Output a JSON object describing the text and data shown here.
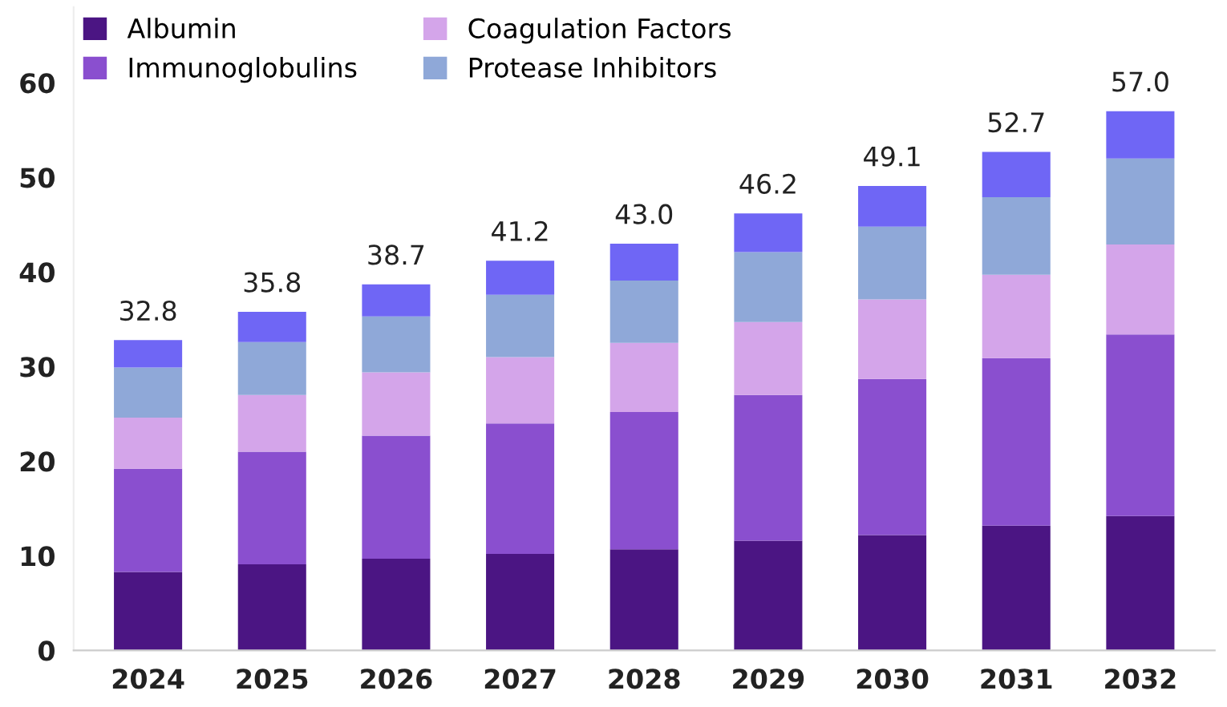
{
  "chart_data": {
    "type": "bar",
    "stacked": true,
    "categories": [
      "2024",
      "2025",
      "2026",
      "2027",
      "2028",
      "2029",
      "2030",
      "2031",
      "2032"
    ],
    "series": [
      {
        "name": "Albumin",
        "color": "#4b1583",
        "values": [
          8.3,
          9.1,
          9.7,
          10.2,
          10.7,
          11.6,
          12.2,
          13.2,
          14.2
        ]
      },
      {
        "name": "Immunoglobulins",
        "color": "#8a4fcf",
        "values": [
          10.9,
          11.9,
          13.0,
          13.8,
          14.5,
          15.4,
          16.5,
          17.7,
          19.2
        ]
      },
      {
        "name": "Coagulation Factors",
        "color": "#d4a5ea",
        "values": [
          5.4,
          6.0,
          6.7,
          7.0,
          7.3,
          7.7,
          8.4,
          8.8,
          9.5
        ]
      },
      {
        "name": "Protease Inhibitors",
        "color": "#8fa8d8",
        "values": [
          5.3,
          5.6,
          5.9,
          6.6,
          6.6,
          7.4,
          7.7,
          8.2,
          9.1
        ]
      },
      {
        "color": "#6f66f5",
        "values": [
          2.9,
          3.2,
          3.4,
          3.6,
          3.9,
          4.1,
          4.3,
          4.8,
          5.0
        ]
      }
    ],
    "totals": [
      "32.8",
      "35.8",
      "38.7",
      "41.2",
      "43.0",
      "46.2",
      "49.1",
      "52.7",
      "57.0"
    ],
    "ylim": [
      0,
      68
    ],
    "yticks": [
      0,
      10,
      20,
      30,
      40,
      50,
      60
    ],
    "grid": false,
    "legend": "top left"
  }
}
